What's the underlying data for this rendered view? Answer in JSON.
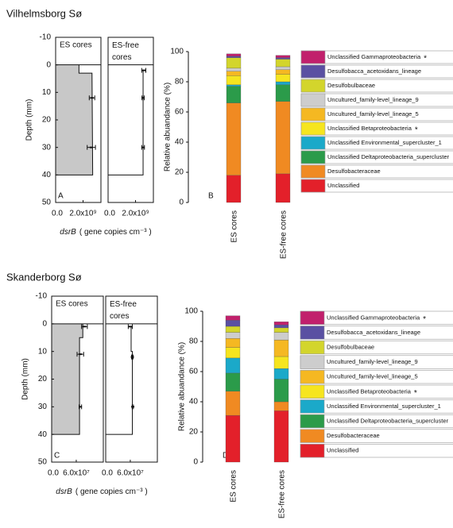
{
  "chart_data": [
    {
      "type": "profile",
      "section_title": "Vilhelmsborg Sø",
      "panel_label": "A",
      "title": "ES cores",
      "ylabel": "Depth (mm)",
      "xlabel_gene": "dsrB",
      "xlabel": "( gene copies cm⁻³ )",
      "fill": "#c8c8c8",
      "xlim": [
        0,
        3300000000
      ],
      "xticks": [
        {
          "value": 0,
          "label": "0.0"
        },
        {
          "value": 2000000000,
          "label": "2.0x10⁹"
        }
      ],
      "ylim": [
        -10,
        50
      ],
      "yticks": [
        -10,
        0,
        10,
        20,
        30,
        40,
        50
      ],
      "line_depth": [
        0,
        3,
        3,
        40,
        40
      ],
      "line_values": [
        1700000000,
        1700000000,
        2650000000,
        2700000000,
        0
      ],
      "points_depth": [
        12,
        30
      ],
      "points_values": [
        2650000000,
        2600000000
      ],
      "points_errors": [
        200000000,
        300000000
      ]
    },
    {
      "type": "profile",
      "title": [
        "ES-free",
        "cores"
      ],
      "xlim": [
        0,
        3300000000
      ],
      "xticks": [
        {
          "value": 0,
          "label": "0.0"
        },
        {
          "value": 2000000000,
          "label": "2.0x10⁹"
        }
      ],
      "ylim": [
        -10,
        50
      ],
      "line_depth": [
        2,
        2,
        40,
        40
      ],
      "line_values": [
        2600000000,
        2550000000,
        2550000000,
        0
      ],
      "points_depth": [
        2,
        12,
        30
      ],
      "points_values": [
        2600000000,
        2550000000,
        2550000000
      ],
      "points_errors": [
        150000000,
        80000000,
        100000000
      ]
    },
    {
      "type": "stacked_bar",
      "panel_label": "B",
      "ylabel": "Relative abuandance (%)",
      "categories": [
        "ES cores",
        "ES-free cores"
      ],
      "ylim": [
        0,
        100
      ],
      "yticks": [
        0,
        20,
        40,
        60,
        80,
        100
      ],
      "series": [
        {
          "name": "Unclassified",
          "color": "#e3202a",
          "values": [
            18,
            19
          ]
        },
        {
          "name": "Desulfobacteraceae",
          "color": "#f08a22",
          "values": [
            48,
            48
          ]
        },
        {
          "name": "Unclassified Deltaproteobacteria_supercluster",
          "color": "#2b9b4a",
          "values": [
            11,
            11
          ]
        },
        {
          "name": "Unclassified Environmental_supercluster_1",
          "color": "#1ba9c9",
          "values": [
            1,
            2
          ]
        },
        {
          "name": "Unclassified Betaproteobacteria",
          "note": "*",
          "color": "#f6e51f",
          "values": [
            6,
            5
          ]
        },
        {
          "name": "Uncultured_family-level_lineage_5",
          "color": "#f5b822",
          "values": [
            3,
            3
          ]
        },
        {
          "name": "Uncultured_family-level_lineage_9",
          "color": "#cdcdcd",
          "values": [
            2,
            2
          ]
        },
        {
          "name": "Desulfobulbaceae",
          "color": "#d3d52c",
          "values": [
            7,
            5
          ]
        },
        {
          "name": "Desulfobacca_acetoxidans_lineage",
          "color": "#5a50a2",
          "values": [
            1,
            1
          ]
        },
        {
          "name": "Unclassified Gammaproteobacteria",
          "note": "*",
          "color": "#c1206c",
          "values": [
            1.5,
            1.5
          ]
        }
      ]
    },
    {
      "type": "profile",
      "section_title": "Skanderborg Sø",
      "panel_label": "C",
      "title": "ES cores",
      "ylabel": "Depth (mm)",
      "xlabel_gene": "dsrB",
      "xlabel": "( gene copies cm⁻³ )",
      "fill": "#c8c8c8",
      "xlim": [
        0,
        126000000
      ],
      "xticks": [
        {
          "value": 0,
          "label": "0.0"
        },
        {
          "value": 60000000,
          "label": "6.0x10⁷"
        }
      ],
      "ylim": [
        -10,
        50
      ],
      "yticks": [
        -10,
        0,
        10,
        20,
        30,
        40,
        50
      ],
      "line_depth": [
        0,
        5,
        5,
        40,
        40
      ],
      "line_values": [
        76000000,
        76000000,
        68000000,
        68000000,
        0
      ],
      "points_depth": [
        1,
        11,
        30
      ],
      "points_values": [
        80000000,
        70000000,
        70000000
      ],
      "points_errors": [
        7000000,
        8000000,
        3000000
      ]
    },
    {
      "type": "profile",
      "title": [
        "ES-free",
        "cores"
      ],
      "xlim": [
        0,
        126000000
      ],
      "xticks": [
        {
          "value": 0,
          "label": "0.0"
        },
        {
          "value": 60000000,
          "label": "6.0x10⁷"
        }
      ],
      "ylim": [
        -10,
        50
      ],
      "line_depth": [
        1,
        1,
        10,
        10,
        40,
        40
      ],
      "line_values": [
        60000000,
        62000000,
        62000000,
        65000000,
        65000000,
        0
      ],
      "points_depth": [
        1,
        12,
        30
      ],
      "points_values": [
        60000000,
        65000000,
        66000000
      ],
      "points_errors": [
        5000000,
        2000000,
        1500000
      ]
    },
    {
      "type": "stacked_bar",
      "panel_label": "D",
      "ylabel": "Relative abuandance (%)",
      "categories": [
        "ES cores",
        "ES-free cores"
      ],
      "ylim": [
        0,
        100
      ],
      "yticks": [
        0,
        20,
        40,
        60,
        80,
        100
      ],
      "series": [
        {
          "name": "Unclassified",
          "color": "#e3202a",
          "values": [
            31,
            34
          ]
        },
        {
          "name": "Desulfobacteraceae",
          "color": "#f08a22",
          "values": [
            16,
            6
          ]
        },
        {
          "name": "Unclassified Deltaproteobacteria_supercluster",
          "color": "#2b9b4a",
          "values": [
            12,
            15
          ]
        },
        {
          "name": "Unclassified Environmental_supercluster_1",
          "color": "#1ba9c9",
          "values": [
            10,
            7
          ]
        },
        {
          "name": "Unclassified Betaproteobacteria",
          "note": "*",
          "color": "#f6e51f",
          "values": [
            7,
            8
          ]
        },
        {
          "name": "Uncultured_family-level_lineage_5",
          "color": "#f5b822",
          "values": [
            6,
            11
          ]
        },
        {
          "name": "Uncultured_family-level_lineage_9",
          "color": "#cdcdcd",
          "values": [
            4,
            5
          ]
        },
        {
          "name": "Desulfobulbaceae",
          "color": "#d3d52c",
          "values": [
            4,
            3
          ]
        },
        {
          "name": "Desulfobacca_acetoxidans_lineage",
          "color": "#5a50a2",
          "values": [
            4,
            2
          ]
        },
        {
          "name": "Unclassified Gammaproteobacteria",
          "note": "*",
          "color": "#c1206c",
          "values": [
            3,
            2
          ]
        }
      ]
    }
  ]
}
